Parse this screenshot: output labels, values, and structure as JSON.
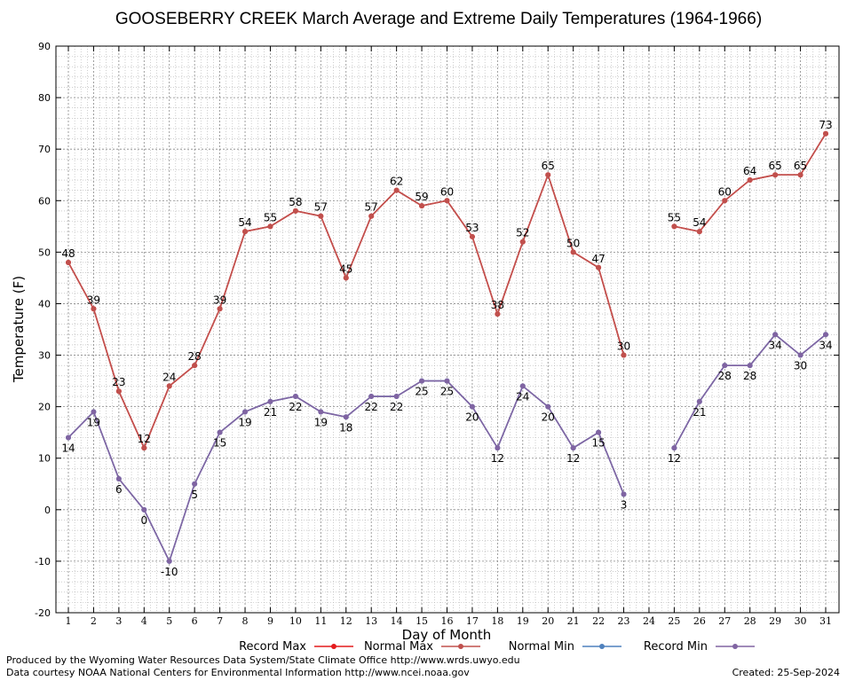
{
  "chart_data": {
    "type": "line",
    "title": "GOOSEBERRY CREEK March Average and Extreme Daily Temperatures (1964-1966)",
    "xlabel": "Day of Month",
    "ylabel": "Temperature (F)",
    "ylim": [
      -20,
      90
    ],
    "yticks": [
      -20,
      -10,
      0,
      10,
      20,
      30,
      40,
      50,
      60,
      70,
      80,
      90
    ],
    "x": [
      1,
      2,
      3,
      4,
      5,
      6,
      7,
      8,
      9,
      10,
      11,
      12,
      13,
      14,
      15,
      16,
      17,
      18,
      19,
      20,
      21,
      22,
      23,
      24,
      25,
      26,
      27,
      28,
      29,
      30,
      31
    ],
    "grid": true,
    "legend_position": "bottom",
    "series": [
      {
        "name": "Record Max",
        "color": "#e41a1c",
        "values": [
          48,
          39,
          23,
          12,
          24,
          28,
          39,
          54,
          55,
          58,
          57,
          45,
          57,
          62,
          59,
          60,
          53,
          38,
          52,
          65,
          50,
          47,
          30,
          null,
          55,
          54,
          60,
          64,
          65,
          65,
          73
        ]
      },
      {
        "name": "Normal Max",
        "color": "#c0504d",
        "values": [
          48,
          39,
          23,
          12,
          24,
          28,
          39,
          54,
          55,
          58,
          57,
          45,
          57,
          62,
          59,
          60,
          53,
          38,
          52,
          65,
          50,
          47,
          30,
          null,
          55,
          54,
          60,
          64,
          65,
          65,
          73
        ]
      },
      {
        "name": "Normal Min",
        "color": "#4f81bd",
        "values": [
          14,
          19,
          6,
          0,
          -10,
          5,
          15,
          19,
          21,
          22,
          19,
          18,
          22,
          22,
          25,
          25,
          20,
          12,
          24,
          20,
          12,
          15,
          3,
          null,
          12,
          21,
          28,
          28,
          34,
          30,
          34
        ]
      },
      {
        "name": "Record Min",
        "color": "#8064a2",
        "values": [
          14,
          19,
          6,
          0,
          -10,
          5,
          15,
          19,
          21,
          22,
          19,
          18,
          22,
          22,
          25,
          25,
          20,
          12,
          24,
          20,
          12,
          15,
          3,
          null,
          12,
          21,
          28,
          28,
          34,
          30,
          34
        ]
      }
    ]
  },
  "footer": {
    "produced_by": "Produced by the Wyoming Water Resources Data System/State Climate Office http://www.wrds.uwyo.edu",
    "courtesy": "Data courtesy NOAA National Centers for Environmental Information http://www.ncei.noaa.gov",
    "created": "Created:  25-Sep-2024"
  }
}
